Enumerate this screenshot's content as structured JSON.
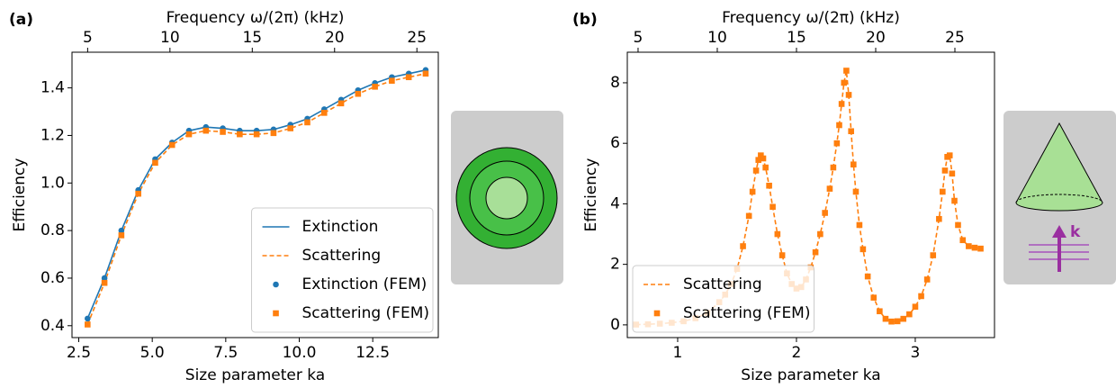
{
  "chart_data": [
    {
      "type": "line",
      "panel_label": "(a)",
      "xlabel": "Size parameter ka",
      "ylabel": "Efficiency",
      "x2label": "Frequency ω/(2π) (kHz)",
      "x": [
        2.8,
        3.375,
        3.95,
        4.525,
        5.1,
        5.675,
        6.25,
        6.825,
        7.4,
        7.975,
        8.55,
        9.125,
        9.7,
        10.275,
        10.85,
        11.425,
        12.0,
        12.575,
        13.15,
        13.725,
        14.3
      ],
      "series": [
        {
          "name": "Extinction",
          "color": "#1f77b4",
          "style": "solid",
          "values": [
            0.43,
            0.6,
            0.8,
            0.97,
            1.1,
            1.17,
            1.22,
            1.235,
            1.23,
            1.22,
            1.22,
            1.225,
            1.245,
            1.27,
            1.31,
            1.35,
            1.39,
            1.42,
            1.445,
            1.46,
            1.475
          ]
        },
        {
          "name": "Scattering",
          "color": "#ff7f0e",
          "style": "dashed",
          "values": [
            0.405,
            0.58,
            0.78,
            0.955,
            1.085,
            1.16,
            1.205,
            1.22,
            1.215,
            1.205,
            1.205,
            1.21,
            1.23,
            1.255,
            1.295,
            1.335,
            1.375,
            1.405,
            1.43,
            1.445,
            1.46
          ]
        },
        {
          "name": "Extinction (FEM)",
          "color": "#1f77b4",
          "style": "circle",
          "values": [
            0.43,
            0.6,
            0.8,
            0.97,
            1.1,
            1.17,
            1.22,
            1.235,
            1.23,
            1.22,
            1.22,
            1.225,
            1.245,
            1.27,
            1.31,
            1.35,
            1.39,
            1.42,
            1.445,
            1.46,
            1.475
          ]
        },
        {
          "name": "Scattering (FEM)",
          "color": "#ff7f0e",
          "style": "square",
          "values": [
            0.405,
            0.58,
            0.78,
            0.955,
            1.085,
            1.16,
            1.205,
            1.22,
            1.215,
            1.205,
            1.205,
            1.21,
            1.23,
            1.255,
            1.295,
            1.335,
            1.375,
            1.405,
            1.43,
            1.445,
            1.46
          ]
        }
      ],
      "xlim": [
        2.27,
        14.73
      ],
      "xticks": [
        2.5,
        {
          "value": 5,
          "label": "5.0"
        },
        7.5,
        {
          "value": 10,
          "label": "10.0"
        },
        12.5
      ],
      "x2lim": [
        4.05,
        26.3
      ],
      "x2ticks": [
        5,
        10,
        15,
        20,
        25
      ],
      "ylim": [
        0.35,
        1.55
      ],
      "yticks": [
        0.4,
        0.6,
        0.8,
        {
          "value": 1,
          "label": "1.0"
        },
        1.2,
        1.4
      ],
      "legend": "lower right"
    },
    {
      "type": "line",
      "panel_label": "(b)",
      "xlabel": "Size parameter ka",
      "ylabel": "Efficiency",
      "x2label": "Frequency ω/(2π) (kHz)",
      "inset_label": "k",
      "x": [
        0.65,
        0.75,
        0.85,
        0.95,
        1.05,
        1.15,
        1.25,
        1.35,
        1.4,
        1.45,
        1.5,
        1.55,
        1.6,
        1.63,
        1.66,
        1.68,
        1.7,
        1.72,
        1.74,
        1.77,
        1.8,
        1.84,
        1.88,
        1.92,
        1.96,
        2.0,
        2.04,
        2.08,
        2.12,
        2.16,
        2.2,
        2.24,
        2.28,
        2.31,
        2.34,
        2.36,
        2.38,
        2.4,
        2.42,
        2.44,
        2.46,
        2.48,
        2.5,
        2.53,
        2.56,
        2.6,
        2.65,
        2.7,
        2.75,
        2.8,
        2.85,
        2.9,
        2.95,
        3.0,
        3.05,
        3.1,
        3.15,
        3.2,
        3.23,
        3.25,
        3.27,
        3.29,
        3.31,
        3.33,
        3.36,
        3.4,
        3.45,
        3.5,
        3.55
      ],
      "series": [
        {
          "name": "Scattering",
          "color": "#ff7f0e",
          "style": "dashed",
          "values": [
            0.01,
            0.02,
            0.04,
            0.07,
            0.12,
            0.22,
            0.4,
            0.75,
            1.0,
            1.35,
            1.85,
            2.6,
            3.6,
            4.4,
            5.1,
            5.45,
            5.6,
            5.5,
            5.2,
            4.6,
            3.9,
            3.0,
            2.3,
            1.7,
            1.35,
            1.2,
            1.25,
            1.5,
            1.9,
            2.4,
            3.0,
            3.7,
            4.5,
            5.2,
            6.0,
            6.6,
            7.3,
            8.0,
            8.4,
            7.6,
            6.4,
            5.3,
            4.4,
            3.3,
            2.5,
            1.6,
            0.9,
            0.45,
            0.2,
            0.11,
            0.12,
            0.2,
            0.35,
            0.6,
            0.95,
            1.5,
            2.3,
            3.5,
            4.4,
            5.1,
            5.55,
            5.6,
            5.0,
            4.1,
            3.3,
            2.8,
            2.6,
            2.55,
            2.52
          ]
        },
        {
          "name": "Scattering (FEM)",
          "color": "#ff7f0e",
          "style": "square",
          "values": [
            0.01,
            0.02,
            0.04,
            0.07,
            0.12,
            0.22,
            0.4,
            0.75,
            1.0,
            1.35,
            1.85,
            2.6,
            3.6,
            4.4,
            5.1,
            5.45,
            5.6,
            5.5,
            5.2,
            4.6,
            3.9,
            3.0,
            2.3,
            1.7,
            1.35,
            1.2,
            1.25,
            1.5,
            1.9,
            2.4,
            3.0,
            3.7,
            4.5,
            5.2,
            6.0,
            6.6,
            7.3,
            8.0,
            8.4,
            7.6,
            6.4,
            5.3,
            4.4,
            3.3,
            2.5,
            1.6,
            0.9,
            0.45,
            0.2,
            0.11,
            0.12,
            0.2,
            0.35,
            0.6,
            0.95,
            1.5,
            2.3,
            3.5,
            4.4,
            5.1,
            5.55,
            5.6,
            5.0,
            4.1,
            3.3,
            2.8,
            2.6,
            2.55,
            2.52
          ]
        }
      ],
      "xlim": [
        0.576,
        3.667
      ],
      "xticks": [
        1,
        2,
        3
      ],
      "x2lim": [
        4.32,
        27.5
      ],
      "x2ticks": [
        5,
        10,
        15,
        20,
        25
      ],
      "ylim": [
        -0.42,
        9.01
      ],
      "yticks": [
        0,
        2,
        4,
        6,
        8
      ],
      "legend": "lower left"
    }
  ]
}
